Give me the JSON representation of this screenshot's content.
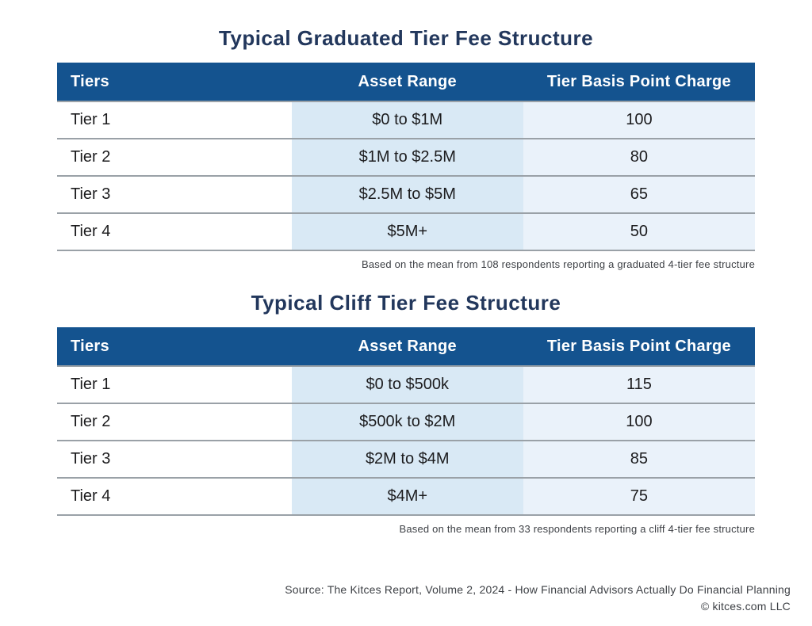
{
  "chart_data": [
    {
      "type": "table",
      "title": "Typical Graduated Tier Fee Structure",
      "columns": [
        "Tiers",
        "Asset Range",
        "Tier Basis Point Charge"
      ],
      "rows": [
        [
          "Tier 1",
          "$0 to $1M",
          "100"
        ],
        [
          "Tier 2",
          "$1M to $2.5M",
          "80"
        ],
        [
          "Tier 3",
          "$2.5M to $5M",
          "65"
        ],
        [
          "Tier 4",
          "$5M+",
          "50"
        ]
      ],
      "footnote": "Based on the mean from 108 respondents reporting a graduated 4-tier fee structure"
    },
    {
      "type": "table",
      "title": "Typical Cliff Tier Fee Structure",
      "columns": [
        "Tiers",
        "Asset Range",
        "Tier Basis Point Charge"
      ],
      "rows": [
        [
          "Tier 1",
          "$0 to $500k",
          "115"
        ],
        [
          "Tier 2",
          "$500k to $2M",
          "100"
        ],
        [
          "Tier 3",
          "$2M to $4M",
          "85"
        ],
        [
          "Tier 4",
          "$4M+",
          "75"
        ]
      ],
      "footnote": "Based on the mean from 33 respondents reporting a cliff 4-tier fee structure"
    }
  ],
  "footer": {
    "source": "Source: The Kitces Report, Volume 2, 2024 - How Financial Advisors Actually Do Financial Planning",
    "copyright": "© kitces.com LLC"
  },
  "colors": {
    "header_bg": "#14538F",
    "title_text": "#22375C",
    "asset_col_bg": "#D9E9F5",
    "charge_col_bg": "#EAF2FA",
    "row_divider": "#9AA1A7",
    "body_text": "#1C1C1E",
    "note_text": "#3D4045"
  }
}
